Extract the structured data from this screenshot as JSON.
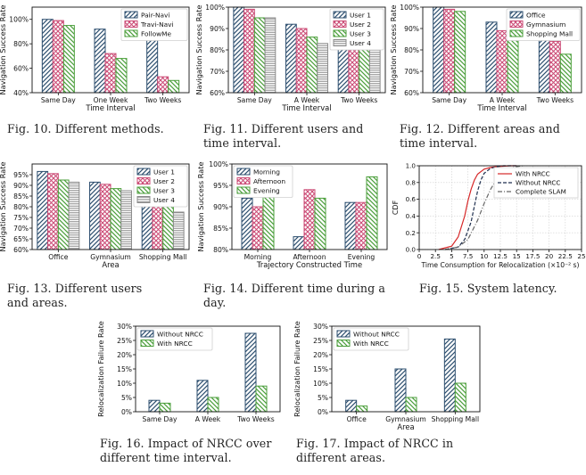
{
  "colors": {
    "blue": "#2d4f6f",
    "pink": "#cc4d77",
    "green": "#4a9e3a",
    "gray": "#8a8a8a",
    "red": "#d62728",
    "navy": "#1f2f4f",
    "dashgray": "#666666"
  },
  "captions": {
    "fig10": "Fig. 10.  Different methods.",
    "fig11": "Fig. 11.  Different users and time interval.",
    "fig12": "Fig. 12.  Different areas and time interval.",
    "fig13": "Fig. 13.  Different users and areas.",
    "fig14": "Fig. 14.  Different time during a day.",
    "fig15": "Fig. 15.  System latency.",
    "fig16": "Fig. 16.  Impact of NRCC over different time interval.",
    "fig17": "Fig. 17.  Impact of NRCC in different areas."
  },
  "chart_data": [
    {
      "id": "fig10",
      "type": "bar",
      "categories": [
        "Same Day",
        "One Week",
        "Two Weeks"
      ],
      "xlabel": "Time Interval",
      "ylabel": "Navigation Success Rate",
      "ylim": [
        40,
        110
      ],
      "yticks": [
        40,
        60,
        80,
        100
      ],
      "ytick_labels": [
        "40%",
        "60%",
        "80%",
        "100%"
      ],
      "legend": "top-right",
      "grid": false,
      "series": [
        {
          "name": "Pair-Navi",
          "color": "#2d4f6f",
          "values": [
            100,
            92,
            85
          ]
        },
        {
          "name": "Travi-Navi",
          "color": "#cc4d77",
          "values": [
            99,
            72,
            53
          ]
        },
        {
          "name": "FollowMe",
          "color": "#4a9e3a",
          "values": [
            95,
            68,
            50
          ]
        }
      ]
    },
    {
      "id": "fig11",
      "type": "bar",
      "categories": [
        "Same Day",
        "A Week",
        "Two Weeks"
      ],
      "xlabel": "Time Interval",
      "ylabel": "Navigation Success Rate",
      "ylim": [
        60,
        100
      ],
      "yticks": [
        60,
        70,
        80,
        90,
        100
      ],
      "ytick_labels": [
        "60%",
        "70%",
        "80%",
        "90%",
        "100%"
      ],
      "legend": "top-right",
      "grid": false,
      "series": [
        {
          "name": "User 1",
          "color": "#2d4f6f",
          "values": [
            100,
            92,
            84
          ]
        },
        {
          "name": "User 2",
          "color": "#cc4d77",
          "values": [
            99,
            90,
            83
          ]
        },
        {
          "name": "User 3",
          "color": "#4a9e3a",
          "values": [
            95,
            86,
            82
          ]
        },
        {
          "name": "User 4",
          "color": "#8a8a8a",
          "values": [
            95,
            83,
            80
          ]
        }
      ]
    },
    {
      "id": "fig12",
      "type": "bar",
      "categories": [
        "Same Day",
        "A Week",
        "Two Weeks"
      ],
      "xlabel": "Time Interval",
      "ylabel": "Navigation Success Rate",
      "ylim": [
        60,
        100
      ],
      "yticks": [
        60,
        70,
        80,
        90,
        100
      ],
      "ytick_labels": [
        "60%",
        "70%",
        "80%",
        "90%",
        "100%"
      ],
      "legend": "top-right",
      "grid": false,
      "series": [
        {
          "name": "Office",
          "color": "#2d4f6f",
          "values": [
            100,
            93,
            86
          ]
        },
        {
          "name": "Gymnasium",
          "color": "#cc4d77",
          "values": [
            99,
            89,
            84
          ]
        },
        {
          "name": "Shopping Mall",
          "color": "#4a9e3a",
          "values": [
            98,
            85,
            78
          ]
        }
      ]
    },
    {
      "id": "fig13",
      "type": "bar",
      "categories": [
        "Office",
        "Gymnasium",
        "Shopping Mall"
      ],
      "xlabel": "Area",
      "ylabel": "Navigation Success Rate",
      "ylim": [
        60,
        100
      ],
      "yticks": [
        60,
        65,
        70,
        75,
        80,
        85,
        90,
        95
      ],
      "ytick_labels": [
        "60%",
        "65%",
        "70%",
        "75%",
        "80%",
        "85%",
        "90%",
        "95%"
      ],
      "legend": "top-right",
      "grid": false,
      "series": [
        {
          "name": "User 1",
          "color": "#2d4f6f",
          "values": [
            96.5,
            91.5,
            81.5
          ]
        },
        {
          "name": "User 2",
          "color": "#cc4d77",
          "values": [
            95.5,
            90.5,
            84
          ]
        },
        {
          "name": "User 3",
          "color": "#4a9e3a",
          "values": [
            92.5,
            88.5,
            83
          ]
        },
        {
          "name": "User 4",
          "color": "#8a8a8a",
          "values": [
            91.5,
            87.5,
            77.5
          ]
        }
      ]
    },
    {
      "id": "fig14",
      "type": "bar",
      "categories": [
        "Morning",
        "Afternoon",
        "Evening"
      ],
      "xlabel": "Trajectory Constructed Time",
      "ylabel": "Navigation Success Rate",
      "ylim": [
        80,
        100
      ],
      "yticks": [
        80,
        85,
        90,
        95,
        100
      ],
      "ytick_labels": [
        "80%",
        "85%",
        "90%",
        "95%",
        "100%"
      ],
      "legend": "top-left",
      "grid": false,
      "series": [
        {
          "name": "Morning",
          "color": "#2d4f6f",
          "values": [
            92,
            83,
            91
          ]
        },
        {
          "name": "Afternoon",
          "color": "#cc4d77",
          "values": [
            90,
            94,
            91
          ]
        },
        {
          "name": "Evening",
          "color": "#4a9e3a",
          "values": [
            94,
            92,
            97
          ]
        }
      ]
    },
    {
      "id": "fig15",
      "type": "line",
      "xlabel": "Time Consumption for Relocalization (×10⁻² s)",
      "ylabel": "CDF",
      "xlim": [
        0,
        25
      ],
      "ylim": [
        0,
        1
      ],
      "xticks": [
        0,
        2.5,
        5,
        7.5,
        10,
        12.5,
        15,
        17.5,
        20,
        22.5,
        25
      ],
      "xtick_labels": [
        "0",
        "2.5",
        "5",
        "7.5",
        "10",
        "12.5",
        "15",
        "17.5",
        "20",
        "22.5",
        "25"
      ],
      "yticks": [
        0,
        0.2,
        0.4,
        0.6,
        0.8,
        1.0
      ],
      "ytick_labels": [
        "0.0",
        "0.2",
        "0.4",
        "0.6",
        "0.8",
        "1.0"
      ],
      "legend": "top-right",
      "grid": true,
      "series": [
        {
          "name": "With NRCC",
          "color": "#d62728",
          "dash": "solid",
          "x": [
            3,
            5,
            6,
            7,
            7.5,
            8,
            8.5,
            9,
            10,
            11,
            12,
            14,
            15
          ],
          "y": [
            0,
            0.04,
            0.15,
            0.4,
            0.58,
            0.72,
            0.83,
            0.9,
            0.96,
            0.98,
            0.99,
            1.0,
            1.0
          ]
        },
        {
          "name": "Without NRCC",
          "color": "#1f2f4f",
          "dash": "dashed",
          "x": [
            4,
            6,
            7,
            8,
            8.5,
            9,
            9.5,
            10,
            11,
            12,
            13,
            14,
            15
          ],
          "y": [
            0,
            0.03,
            0.12,
            0.33,
            0.52,
            0.7,
            0.83,
            0.91,
            0.97,
            0.99,
            1.0,
            1.0,
            1.0
          ]
        },
        {
          "name": "Complete SLAM",
          "color": "#666666",
          "dash": "dashdot",
          "x": [
            4,
            6,
            7.5,
            9,
            10,
            11,
            12,
            13,
            14,
            15,
            16
          ],
          "y": [
            0,
            0.03,
            0.12,
            0.35,
            0.55,
            0.72,
            0.85,
            0.93,
            0.97,
            0.99,
            1.0
          ]
        }
      ]
    },
    {
      "id": "fig16",
      "type": "bar",
      "categories": [
        "Same Day",
        "A Week",
        "Two Weeks"
      ],
      "xlabel": "",
      "ylabel": "Relocalization Failure Rate",
      "ylim": [
        0,
        30
      ],
      "yticks": [
        0,
        5,
        10,
        15,
        20,
        25,
        30
      ],
      "ytick_labels": [
        "0%",
        "5%",
        "10%",
        "15%",
        "20%",
        "25%",
        "30%"
      ],
      "legend": "top-left",
      "grid": false,
      "series": [
        {
          "name": "Without NRCC",
          "color": "#2d4f6f",
          "values": [
            4,
            11,
            27.5
          ]
        },
        {
          "name": "With NRCC",
          "color": "#4a9e3a",
          "values": [
            3,
            5,
            9
          ]
        }
      ]
    },
    {
      "id": "fig17",
      "type": "bar",
      "categories": [
        "Office",
        "Gymnasium",
        "Shopping Mall"
      ],
      "xlabel": "Area",
      "ylabel": "Relocalization Failure Rate",
      "ylim": [
        0,
        30
      ],
      "yticks": [
        0,
        5,
        10,
        15,
        20,
        25,
        30
      ],
      "ytick_labels": [
        "0%",
        "5%",
        "10%",
        "15%",
        "20%",
        "25%",
        "30%"
      ],
      "legend": "top-left",
      "grid": false,
      "series": [
        {
          "name": "Without NRCC",
          "color": "#2d4f6f",
          "values": [
            4,
            15,
            25.5
          ]
        },
        {
          "name": "With NRCC",
          "color": "#4a9e3a",
          "values": [
            2,
            5,
            10
          ]
        }
      ]
    }
  ]
}
